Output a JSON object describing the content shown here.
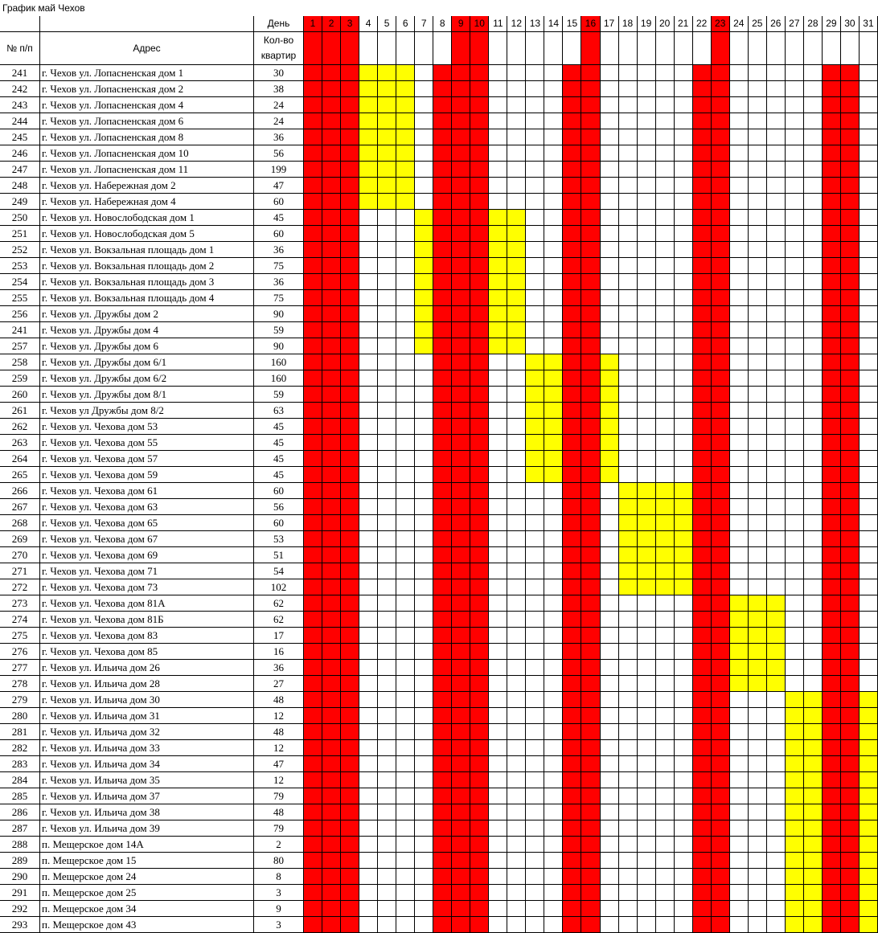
{
  "title": "График май Чехов",
  "headers": {
    "num": "№ п/п",
    "address": "Адрес",
    "day": "День",
    "flats": "Кол-во квартир"
  },
  "days": [
    1,
    2,
    3,
    4,
    5,
    6,
    7,
    8,
    9,
    10,
    11,
    12,
    13,
    14,
    15,
    16,
    17,
    18,
    19,
    20,
    21,
    22,
    23,
    24,
    25,
    26,
    27,
    28,
    29,
    30,
    31
  ],
  "holidays": [
    1,
    2,
    3,
    8,
    9,
    10,
    15,
    16,
    22,
    23,
    29,
    30
  ],
  "header_highlight": [
    1,
    2,
    3,
    9,
    10,
    16,
    23
  ],
  "holiday_color": "#ff0000",
  "work_color": "#ffff00",
  "rows": [
    [
      241,
      "г. Чехов ул. Лопасненская дом 1",
      30,
      [
        4,
        5,
        6
      ]
    ],
    [
      242,
      "г. Чехов ул. Лопасненская дом 2",
      38,
      [
        4,
        5,
        6
      ]
    ],
    [
      243,
      "г. Чехов ул. Лопасненская дом 4",
      24,
      [
        4,
        5,
        6
      ]
    ],
    [
      244,
      "г. Чехов ул. Лопасненская дом 6",
      24,
      [
        4,
        5,
        6
      ]
    ],
    [
      245,
      "г. Чехов ул. Лопасненская дом 8",
      36,
      [
        4,
        5,
        6
      ]
    ],
    [
      246,
      "г. Чехов ул. Лопасненская дом 10",
      56,
      [
        4,
        5,
        6
      ]
    ],
    [
      247,
      "г. Чехов ул. Лопасненская дом 11",
      199,
      [
        4,
        5,
        6
      ]
    ],
    [
      248,
      "г. Чехов ул. Набережная дом 2",
      47,
      [
        4,
        5,
        6
      ]
    ],
    [
      249,
      "г. Чехов ул. Набережная дом 4",
      60,
      [
        4,
        5,
        6
      ]
    ],
    [
      250,
      "г. Чехов ул. Новослободская дом 1",
      45,
      [
        7,
        11,
        12
      ]
    ],
    [
      251,
      "г. Чехов ул. Новослободская дом 5",
      60,
      [
        7,
        11,
        12
      ]
    ],
    [
      252,
      "г. Чехов ул. Вокзальная площадь дом 1",
      36,
      [
        7,
        11,
        12
      ]
    ],
    [
      253,
      "г. Чехов ул. Вокзальная площадь дом 2",
      75,
      [
        7,
        11,
        12
      ]
    ],
    [
      254,
      "г. Чехов ул. Вокзальная площадь дом 3",
      36,
      [
        7,
        11,
        12
      ]
    ],
    [
      255,
      "г. Чехов ул. Вокзальная площадь дом 4",
      75,
      [
        7,
        11,
        12
      ]
    ],
    [
      256,
      "г. Чехов ул. Дружбы дом 2",
      90,
      [
        7,
        11,
        12
      ]
    ],
    [
      241,
      "г. Чехов ул. Дружбы дом 4",
      59,
      [
        7,
        11,
        12
      ]
    ],
    [
      257,
      "г. Чехов ул. Дружбы дом 6",
      90,
      [
        7,
        11,
        12
      ]
    ],
    [
      258,
      "г. Чехов ул. Дружбы дом 6/1",
      160,
      [
        13,
        14,
        17
      ]
    ],
    [
      259,
      "г. Чехов ул. Дружбы дом 6/2",
      160,
      [
        13,
        14,
        17
      ]
    ],
    [
      260,
      "г. Чехов ул. Дружбы дом 8/1",
      59,
      [
        13,
        14,
        17
      ]
    ],
    [
      261,
      "г. Чехов ул Дружбы дом 8/2",
      63,
      [
        13,
        14,
        17
      ]
    ],
    [
      262,
      "г. Чехов ул. Чехова дом 53",
      45,
      [
        13,
        14,
        17
      ]
    ],
    [
      263,
      "г. Чехов ул. Чехова дом 55",
      45,
      [
        13,
        14,
        17
      ]
    ],
    [
      264,
      "г. Чехов ул. Чехова дом 57",
      45,
      [
        13,
        14,
        17
      ]
    ],
    [
      265,
      "г. Чехов ул. Чехова дом 59",
      45,
      [
        13,
        14,
        17
      ]
    ],
    [
      266,
      "г. Чехов ул. Чехова дом 61",
      60,
      [
        18,
        19,
        20,
        21
      ]
    ],
    [
      267,
      "г. Чехов ул. Чехова дом 63",
      56,
      [
        18,
        19,
        20,
        21
      ]
    ],
    [
      268,
      "г. Чехов ул. Чехова дом 65",
      60,
      [
        18,
        19,
        20,
        21
      ]
    ],
    [
      269,
      "г. Чехов ул. Чехова дом 67",
      53,
      [
        18,
        19,
        20,
        21
      ]
    ],
    [
      270,
      "г. Чехов ул. Чехова дом 69",
      51,
      [
        18,
        19,
        20,
        21
      ]
    ],
    [
      271,
      "г. Чехов ул. Чехова дом 71",
      54,
      [
        18,
        19,
        20,
        21
      ]
    ],
    [
      272,
      "г. Чехов ул. Чехова дом 73",
      102,
      [
        18,
        19,
        20,
        21
      ]
    ],
    [
      273,
      "г. Чехов ул. Чехова дом 81А",
      62,
      [
        24,
        25,
        26
      ]
    ],
    [
      274,
      "г. Чехов ул. Чехова дом 81Б",
      62,
      [
        24,
        25,
        26
      ]
    ],
    [
      275,
      "г. Чехов ул. Чехова дом 83",
      17,
      [
        24,
        25,
        26
      ]
    ],
    [
      276,
      "г. Чехов ул. Чехова дом 85",
      16,
      [
        24,
        25,
        26
      ]
    ],
    [
      277,
      "г. Чехов ул. Ильича дом 26",
      36,
      [
        24,
        25,
        26
      ]
    ],
    [
      278,
      "г. Чехов ул. Ильича дом 28",
      27,
      [
        24,
        25,
        26
      ]
    ],
    [
      279,
      "г. Чехов ул. Ильича дом 30",
      48,
      [
        27,
        28,
        31
      ]
    ],
    [
      280,
      "г. Чехов ул. Ильича дом 31",
      12,
      [
        27,
        28,
        31
      ]
    ],
    [
      281,
      "г. Чехов ул. Ильича дом 32",
      48,
      [
        27,
        28,
        31
      ]
    ],
    [
      282,
      "г. Чехов ул. Ильича дом 33",
      12,
      [
        27,
        28,
        31
      ]
    ],
    [
      283,
      "г. Чехов ул. Ильича дом 34",
      47,
      [
        27,
        28,
        31
      ]
    ],
    [
      284,
      "г. Чехов ул. Ильича дом 35",
      12,
      [
        27,
        28,
        31
      ]
    ],
    [
      285,
      "г. Чехов ул. Ильича дом 37",
      79,
      [
        27,
        28,
        31
      ]
    ],
    [
      286,
      "г. Чехов ул. Ильича дом 38",
      48,
      [
        27,
        28,
        31
      ]
    ],
    [
      287,
      "г. Чехов ул. Ильича дом 39",
      79,
      [
        27,
        28,
        31
      ]
    ],
    [
      288,
      "п. Мещерское дом 14А",
      2,
      [
        27,
        28,
        31
      ]
    ],
    [
      289,
      "п. Мещерское дом 15",
      80,
      [
        27,
        28,
        31
      ]
    ],
    [
      290,
      "п. Мещерское дом 24",
      8,
      [
        27,
        28,
        31
      ]
    ],
    [
      291,
      "п. Мещерское дом 25",
      3,
      [
        27,
        28,
        31
      ]
    ],
    [
      292,
      "п. Мещерское дом 34",
      9,
      [
        27,
        28,
        31
      ]
    ],
    [
      293,
      "п. Мещерское дом 43",
      3,
      [
        27,
        28,
        31
      ]
    ]
  ]
}
